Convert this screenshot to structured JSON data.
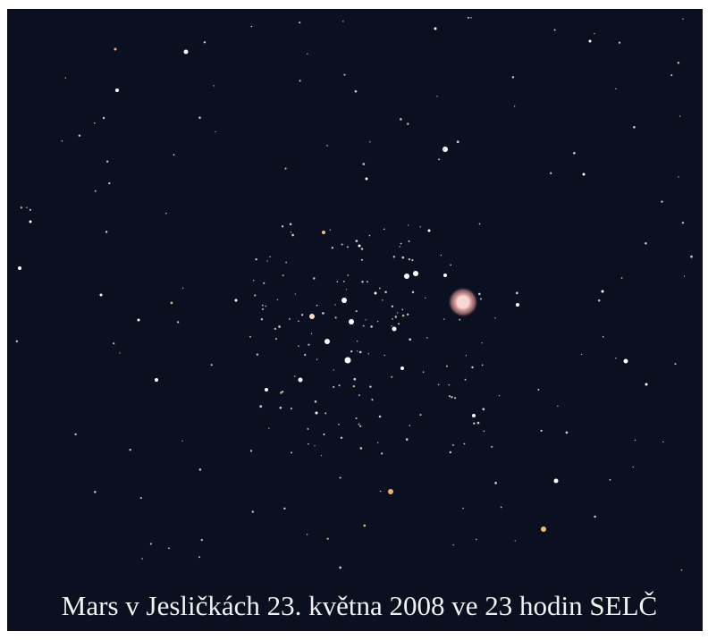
{
  "caption": "Mars v Jesličkách 23. května 2008 ve 23 hodin SELČ"
}
